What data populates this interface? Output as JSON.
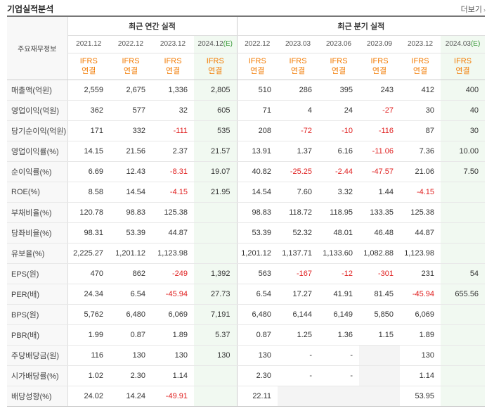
{
  "header": {
    "title": "기업실적분석",
    "more_label": "더보기",
    "more_arrow": "›"
  },
  "table": {
    "corner_label": "주요재무정보",
    "groups": [
      {
        "label": "최근 연간 실적",
        "span": 4
      },
      {
        "label": "최근 분기 실적",
        "span": 6
      }
    ],
    "columns": [
      {
        "period": "2021.12",
        "est": "",
        "acct": [
          "IFRS",
          "연결"
        ]
      },
      {
        "period": "2022.12",
        "est": "",
        "acct": [
          "IFRS",
          "연결"
        ]
      },
      {
        "period": "2023.12",
        "est": "",
        "acct": [
          "IFRS",
          "연결"
        ]
      },
      {
        "period": "2024.12",
        "est": "(E)",
        "acct": [
          "IFRS",
          "연결"
        ]
      },
      {
        "period": "2022.12",
        "est": "",
        "acct": [
          "IFRS",
          "연결"
        ]
      },
      {
        "period": "2023.03",
        "est": "",
        "acct": [
          "IFRS",
          "연결"
        ]
      },
      {
        "period": "2023.06",
        "est": "",
        "acct": [
          "IFRS",
          "연결"
        ]
      },
      {
        "period": "2023.09",
        "est": "",
        "acct": [
          "IFRS",
          "연결"
        ]
      },
      {
        "period": "2023.12",
        "est": "",
        "acct": [
          "IFRS",
          "연결"
        ]
      },
      {
        "period": "2024.03",
        "est": "(E)",
        "acct": [
          "IFRS",
          "연결"
        ]
      }
    ],
    "rows": [
      {
        "label": "매출액(억원)",
        "values": [
          "2,559",
          "2,675",
          "1,336",
          "2,805",
          "510",
          "286",
          "395",
          "243",
          "412",
          "400"
        ]
      },
      {
        "label": "영업이익(억원)",
        "values": [
          "362",
          "577",
          "32",
          "605",
          "71",
          "4",
          "24",
          "-27",
          "30",
          "40"
        ]
      },
      {
        "label": "당기순이익(억원)",
        "values": [
          "171",
          "332",
          "-111",
          "535",
          "208",
          "-72",
          "-10",
          "-116",
          "87",
          "30"
        ]
      },
      {
        "label": "영업이익률(%)",
        "values": [
          "14.15",
          "21.56",
          "2.37",
          "21.57",
          "13.91",
          "1.37",
          "6.16",
          "-11.06",
          "7.36",
          "10.00"
        ]
      },
      {
        "label": "순이익률(%)",
        "values": [
          "6.69",
          "12.43",
          "-8.31",
          "19.07",
          "40.82",
          "-25.25",
          "-2.44",
          "-47.57",
          "21.06",
          "7.50"
        ]
      },
      {
        "label": "ROE(%)",
        "values": [
          "8.58",
          "14.54",
          "-4.15",
          "21.95",
          "14.54",
          "7.60",
          "3.32",
          "1.44",
          "-4.15",
          ""
        ]
      },
      {
        "label": "부채비율(%)",
        "values": [
          "120.78",
          "98.83",
          "125.38",
          "",
          "98.83",
          "118.72",
          "118.95",
          "133.35",
          "125.38",
          ""
        ]
      },
      {
        "label": "당좌비율(%)",
        "values": [
          "98.31",
          "53.39",
          "44.87",
          "",
          "53.39",
          "52.32",
          "48.01",
          "46.48",
          "44.87",
          ""
        ]
      },
      {
        "label": "유보율(%)",
        "values": [
          "2,225.27",
          "1,201.12",
          "1,123.98",
          "",
          "1,201.12",
          "1,137.71",
          "1,133.60",
          "1,082.88",
          "1,123.98",
          ""
        ]
      },
      {
        "label": "EPS(원)",
        "values": [
          "470",
          "862",
          "-249",
          "1,392",
          "563",
          "-167",
          "-12",
          "-301",
          "231",
          "54"
        ]
      },
      {
        "label": "PER(배)",
        "values": [
          "24.34",
          "6.54",
          "-45.94",
          "27.73",
          "6.54",
          "17.27",
          "41.91",
          "81.45",
          "-45.94",
          "655.56"
        ]
      },
      {
        "label": "BPS(원)",
        "values": [
          "5,762",
          "6,480",
          "6,069",
          "7,191",
          "6,480",
          "6,144",
          "6,149",
          "5,850",
          "6,069",
          ""
        ]
      },
      {
        "label": "PBR(배)",
        "values": [
          "1.99",
          "0.87",
          "1.89",
          "5.37",
          "0.87",
          "1.25",
          "1.36",
          "1.15",
          "1.89",
          ""
        ]
      },
      {
        "label": "주당배당금(원)",
        "values": [
          "116",
          "130",
          "130",
          "130",
          "130",
          "-",
          "-",
          "",
          "130",
          ""
        ]
      },
      {
        "label": "시가배당률(%)",
        "values": [
          "1.02",
          "2.30",
          "1.14",
          "",
          "2.30",
          "-",
          "-",
          "",
          "1.14",
          ""
        ]
      },
      {
        "label": "배당성향(%)",
        "values": [
          "24.02",
          "14.24",
          "-49.91",
          "",
          "22.11",
          "",
          "",
          "",
          "53.95",
          ""
        ]
      }
    ],
    "group_start_rows": [
      3,
      6,
      9,
      13
    ],
    "blank_cells": [
      [
        13,
        7
      ],
      [
        14,
        7
      ],
      [
        15,
        5
      ],
      [
        15,
        6
      ],
      [
        15,
        7
      ]
    ],
    "colors": {
      "negative": "#e02020",
      "accounting": "#f27a00",
      "estimate_bg": "#f1f9f1",
      "estimate_mark": "#3a9a3a"
    }
  }
}
